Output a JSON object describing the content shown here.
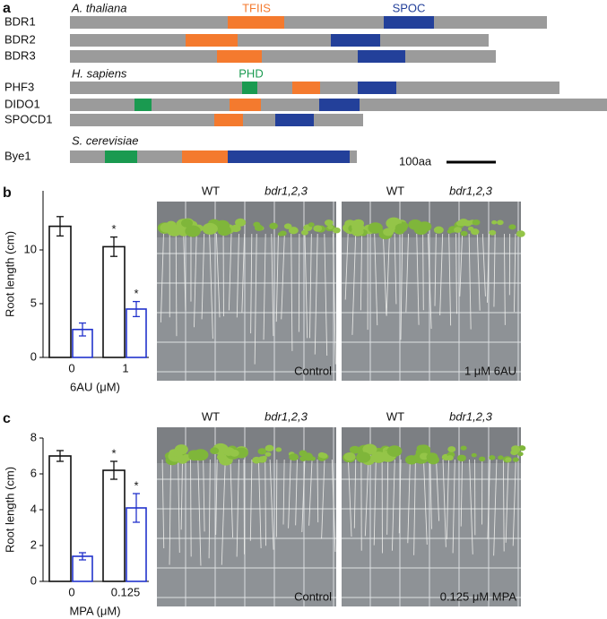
{
  "panel_labels": [
    "a",
    "b",
    "c"
  ],
  "domains": {
    "species": [
      "A. thaliana",
      "H. sapiens",
      "S. cerevisiae"
    ],
    "domain_labels": [
      "TFIIS",
      "SPOC",
      "PHD"
    ],
    "proteins": [
      "BDR1",
      "BDR2",
      "BDR3",
      "PHF3",
      "DIDO1",
      "SPOCD1",
      "Bye1"
    ],
    "scale_bar": "100aa"
  },
  "chart_data": [
    {
      "type": "bar",
      "ylabel": "Root length (cm)",
      "xlabel": "6AU (μM)",
      "categories": [
        "0",
        "1"
      ],
      "series": [
        {
          "color": "#111111",
          "values": [
            12.2,
            10.3
          ],
          "errors": [
            0.9,
            0.9
          ],
          "annotations": [
            null,
            "*"
          ]
        },
        {
          "color": "#2233cc",
          "values": [
            2.6,
            4.5
          ],
          "errors": [
            0.6,
            0.7
          ],
          "annotations": [
            null,
            "*"
          ]
        }
      ],
      "ylim": [
        0,
        15.5
      ],
      "yticks": [
        0,
        5,
        10
      ]
    },
    {
      "type": "bar",
      "ylabel": "Root length (cm)",
      "xlabel": "MPA (μM)",
      "categories": [
        "0",
        "0.125"
      ],
      "series": [
        {
          "color": "#111111",
          "values": [
            7.0,
            6.2
          ],
          "errors": [
            0.3,
            0.5
          ],
          "annotations": [
            null,
            "*"
          ]
        },
        {
          "color": "#2233cc",
          "values": [
            1.4,
            4.1
          ],
          "errors": [
            0.2,
            0.8
          ],
          "annotations": [
            null,
            "*"
          ]
        }
      ],
      "ylim": [
        0,
        8
      ],
      "yticks": [
        0,
        2,
        4,
        6,
        8
      ]
    }
  ],
  "photos": [
    {
      "genotypes": [
        "WT",
        "bdr1,2,3"
      ],
      "conditions": [
        "Control",
        "1 μM 6AU"
      ]
    },
    {
      "genotypes": [
        "WT",
        "bdr1,2,3"
      ],
      "conditions": [
        "Control",
        "0.125 μM MPA"
      ]
    }
  ]
}
